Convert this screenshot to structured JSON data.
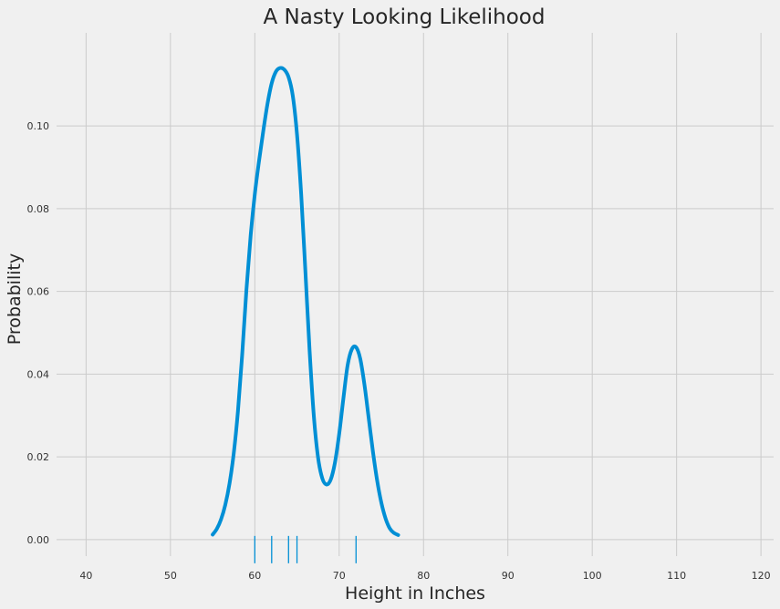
{
  "chart_data": {
    "type": "line",
    "title": "A Nasty Looking Likelihood",
    "xlabel": "Height in Inches",
    "ylabel": "Probability",
    "xlim": [
      36.5,
      121.5
    ],
    "ylim": [
      -0.004,
      0.1225
    ],
    "grid": true,
    "x_ticks": [
      40,
      50,
      60,
      70,
      80,
      90,
      100,
      110,
      120
    ],
    "x_tick_labels": [
      "40",
      "50",
      "60",
      "70",
      "80",
      "90",
      "100",
      "110",
      "120"
    ],
    "y_ticks": [
      0.0,
      0.02,
      0.04,
      0.06,
      0.08,
      0.1
    ],
    "y_tick_labels": [
      "0.00",
      "0.02",
      "0.04",
      "0.06",
      "0.08",
      "0.10"
    ],
    "series": [
      {
        "color": "#008fd5",
        "x": [
          55,
          55.5,
          56,
          56.5,
          57,
          57.5,
          58,
          58.5,
          59,
          59.5,
          60,
          60.5,
          61,
          61.5,
          62,
          62.5,
          63,
          63.5,
          64,
          64.5,
          65,
          65.5,
          66,
          66.5,
          67,
          67.5,
          68,
          68.5,
          69,
          69.5,
          70,
          70.5,
          71,
          71.5,
          72,
          72.5,
          73,
          73.5,
          74,
          74.5,
          75,
          75.5,
          76,
          76.5,
          77
        ],
        "y": [
          0.0012,
          0.0026,
          0.0049,
          0.0084,
          0.0135,
          0.0208,
          0.031,
          0.0446,
          0.0602,
          0.0733,
          0.0835,
          0.0915,
          0.0987,
          0.1053,
          0.1103,
          0.1131,
          0.114,
          0.1136,
          0.1118,
          0.1073,
          0.098,
          0.0834,
          0.0647,
          0.0455,
          0.0298,
          0.0198,
          0.0148,
          0.0133,
          0.0145,
          0.0186,
          0.0255,
          0.0341,
          0.0421,
          0.046,
          0.0465,
          0.0437,
          0.0374,
          0.0294,
          0.0213,
          0.0143,
          0.0089,
          0.0051,
          0.0027,
          0.0016,
          0.0011
        ]
      }
    ],
    "rug": {
      "color": "#008fd5",
      "x": [
        60,
        62,
        64,
        65,
        72
      ]
    }
  }
}
